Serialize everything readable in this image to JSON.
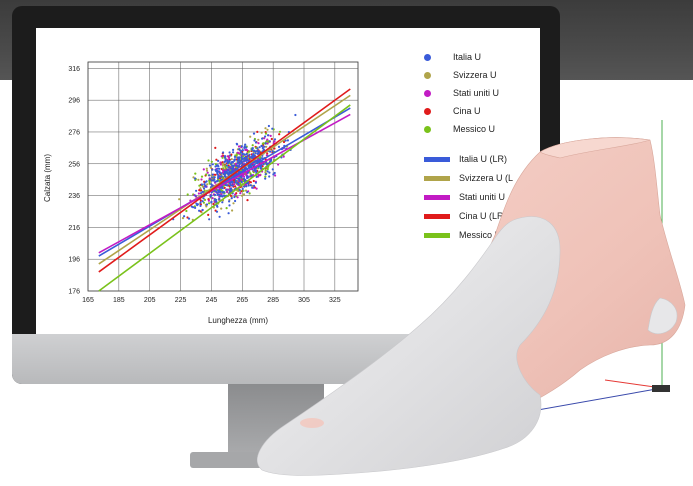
{
  "chart_data": {
    "type": "scatter",
    "xlabel": "Lunghezza (mm)",
    "ylabel": "Calzata (mm)",
    "xlim": [
      165,
      340
    ],
    "ylim": [
      176,
      320
    ],
    "x_ticks": [
      "165",
      "185",
      "205",
      "225",
      "245",
      "265",
      "285",
      "305",
      "325"
    ],
    "y_ticks": [
      "176",
      "196",
      "216",
      "236",
      "256",
      "276",
      "296",
      "316"
    ],
    "grid": true,
    "legend_placement": "right",
    "scatter_series": [
      {
        "name": "Italia U",
        "color": "#3a5bd9"
      },
      {
        "name": "Svizzera U",
        "color": "#b0a44a"
      },
      {
        "name": "Stati uniti U",
        "color": "#c21bc4"
      },
      {
        "name": "Cina U",
        "color": "#e01b1b"
      },
      {
        "name": "Messico U",
        "color": "#7ac21b"
      }
    ],
    "regression_lines": [
      {
        "name": "Italia U (LR)",
        "color": "#3a5bd9",
        "x": [
          172,
          335
        ],
        "y": [
          198,
          291
        ]
      },
      {
        "name": "Svizzera U (LR)",
        "color": "#b0a44a",
        "x": [
          172,
          335
        ],
        "y": [
          193,
          299
        ]
      },
      {
        "name": "Stati uniti U",
        "color": "#c21bc4",
        "x": [
          172,
          335
        ],
        "y": [
          200,
          287
        ]
      },
      {
        "name": "Cina U (LR)",
        "color": "#e01b1b",
        "x": [
          172,
          335
        ],
        "y": [
          188,
          303
        ]
      },
      {
        "name": "Messico U",
        "color": "#7ac21b",
        "x": [
          172,
          335
        ],
        "y": [
          176,
          293
        ]
      }
    ],
    "cluster_center": [
      262,
      251
    ]
  },
  "legend": {
    "scatter_labels": [
      "Italia U",
      "Svizzera U",
      "Stati uniti U",
      "Cina U",
      "Messico U"
    ],
    "line_labels": [
      "Italia U (LR)",
      "Svizzera U (L",
      "Stati uniti U",
      "Cina U (LR)",
      "Messico U"
    ]
  },
  "colors": {
    "italia": "#3a5bd9",
    "svizzera": "#b0a44a",
    "stati_uniti": "#c21bc4",
    "cina": "#e01b1b",
    "messico": "#7ac21b",
    "foot_skin": "#f2c9c0",
    "shoe_last": "#e9e9ea"
  }
}
